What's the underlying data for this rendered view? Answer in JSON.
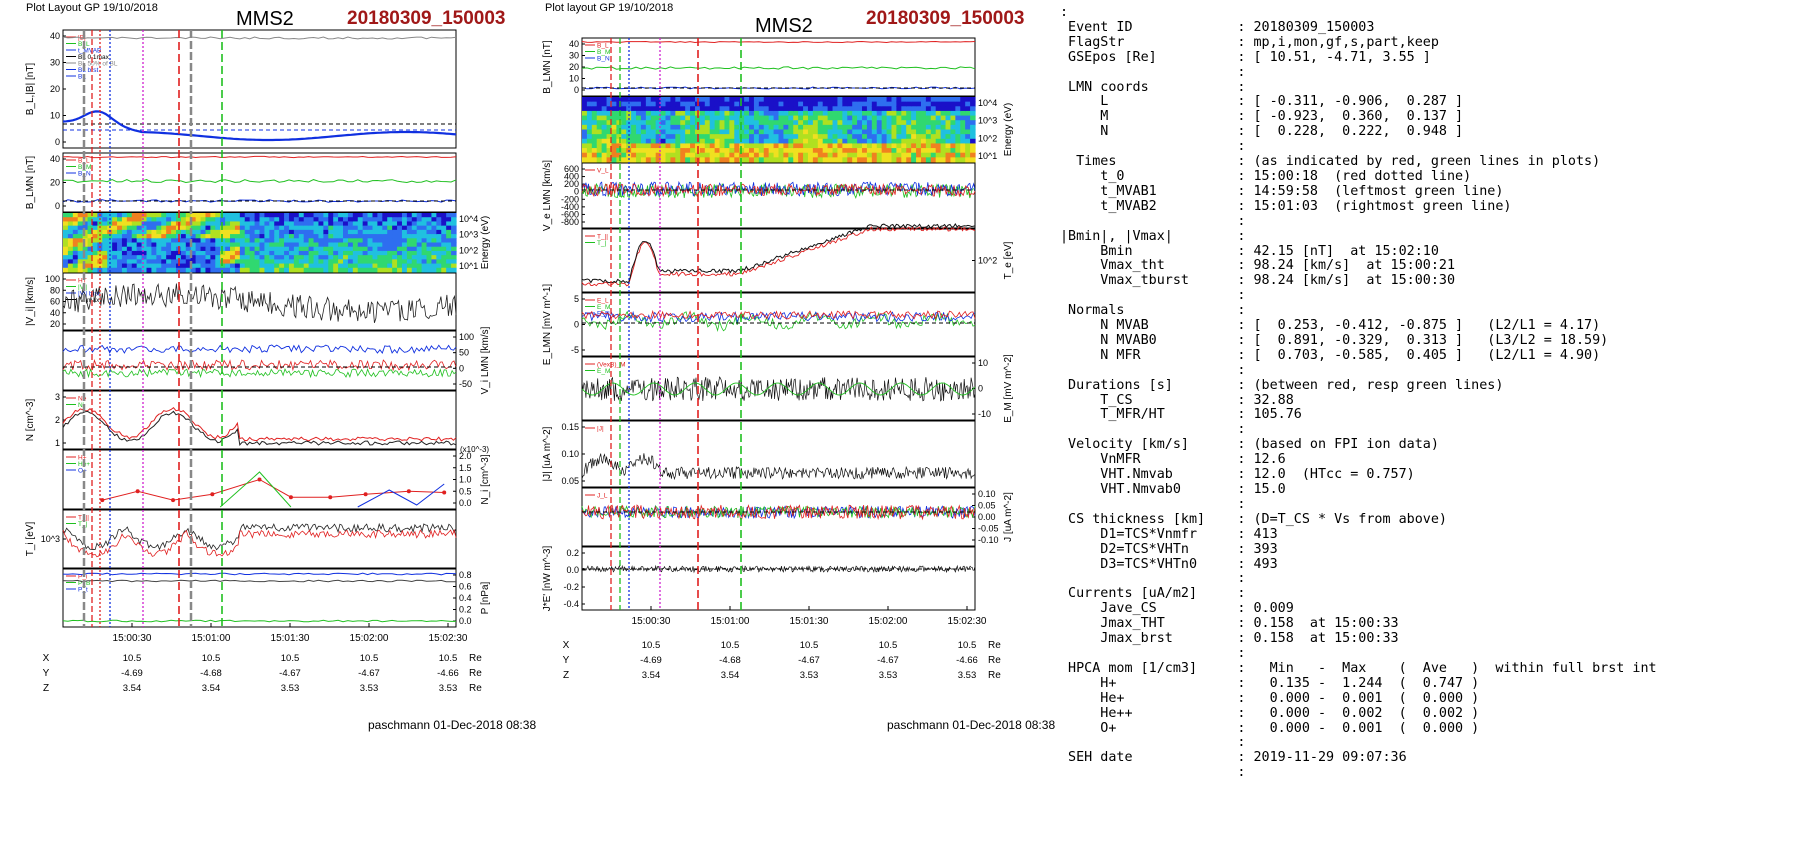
{
  "left": {
    "layout_label": "Plot Layout GP 19/10/2018",
    "spacecraft": "MMS2",
    "event_code": "20180309_150003",
    "footer": "paschmann 01-Dec-2018 08:38",
    "time_ticks": [
      "15:00:30",
      "15:01:00",
      "15:01:30",
      "15:02:00",
      "15:02:30"
    ],
    "orbit_rows": [
      {
        "label": "X",
        "values": [
          "10.5",
          "10.5",
          "10.5",
          "10.5",
          "10.5"
        ],
        "unit": "Re"
      },
      {
        "label": "Y",
        "values": [
          "-4.69",
          "-4.68",
          "-4.67",
          "-4.67",
          "-4.66"
        ],
        "unit": "Re"
      },
      {
        "label": "Z",
        "values": [
          "3.54",
          "3.54",
          "3.53",
          "3.53",
          "3.53"
        ],
        "unit": "Re"
      }
    ],
    "panels": [
      {
        "ylabel": "B_L,|B| [nT]",
        "ticks": [
          "40",
          "30",
          "20",
          "10",
          "0"
        ],
        "legend": [
          "|B|",
          "B_L",
          "t_MVAB",
          "BL 0.1max",
          "BL 50% of BL",
          "BL brst",
          "BL"
        ]
      },
      {
        "ylabel": "B_LMN [nT]",
        "ticks": [
          "40",
          "20",
          "0"
        ],
        "legend": [
          "B_L",
          "B_M",
          "B_N"
        ]
      },
      {
        "ylabel": "Energy (eV)",
        "ticks": [
          "10^4",
          "10^3",
          "10^2",
          "10^1"
        ]
      },
      {
        "ylabel": "|V_i| [km/s]",
        "ticks": [
          "100",
          "80",
          "60",
          "40",
          "20"
        ],
        "legend": [
          "HT",
          "|Vi|",
          "|Vi| brst",
          "|Vi|max"
        ]
      },
      {
        "ylabel": "V_i LMN [km/s]",
        "ticks": [
          "100",
          "50",
          "0",
          "-50"
        ]
      },
      {
        "ylabel": "N [cm^-3]",
        "ticks": [
          "3",
          "2",
          "1"
        ],
        "legend": [
          "Ne",
          "Ni"
        ]
      },
      {
        "ylabel": "N_i [cm^-3]",
        "scale_note": "(x10^-3)",
        "ticks": [
          "2.0",
          "1.5",
          "1.0",
          "0.5",
          "0.0"
        ],
        "legend": [
          "H+",
          "He+",
          "O+"
        ]
      },
      {
        "ylabel": "T_i [eV]",
        "ticks": [
          "10^3"
        ],
        "legend": [
          "T_||",
          "T_|"
        ]
      },
      {
        "ylabel": "P [nPa]",
        "ticks": [
          "0.8",
          "0.6",
          "0.4",
          "0.2",
          "0.0"
        ],
        "legend": [
          "P_i",
          "P_B",
          "P_t"
        ]
      }
    ]
  },
  "middle": {
    "layout_label": "Plot layout GP 19/10/2018",
    "spacecraft": "MMS2",
    "event_code": "20180309_150003",
    "footer": "paschmann 01-Dec-2018 08:38",
    "time_ticks": [
      "15:00:30",
      "15:01:00",
      "15:01:30",
      "15:02:00",
      "15:02:30"
    ],
    "orbit_rows": [
      {
        "label": "X",
        "values": [
          "10.5",
          "10.5",
          "10.5",
          "10.5",
          "10.5"
        ],
        "unit": "Re"
      },
      {
        "label": "Y",
        "values": [
          "-4.69",
          "-4.68",
          "-4.67",
          "-4.67",
          "-4.66"
        ],
        "unit": "Re"
      },
      {
        "label": "Z",
        "values": [
          "3.54",
          "3.54",
          "3.53",
          "3.53",
          "3.53"
        ],
        "unit": "Re"
      }
    ],
    "panels": [
      {
        "ylabel": "B_LMN [nT]",
        "ticks": [
          "40",
          "30",
          "20",
          "10",
          "0"
        ],
        "legend": [
          "B_L",
          "B_M",
          "B_N"
        ]
      },
      {
        "ylabel": "Energy (eV)",
        "ticks": [
          "10^4",
          "10^3",
          "10^2",
          "10^1"
        ]
      },
      {
        "ylabel": "V_e LMN [km/s]",
        "ticks": [
          "600",
          "400",
          "200",
          "0",
          "-200",
          "-400",
          "-600",
          "-800"
        ],
        "legend": [
          "V_L"
        ]
      },
      {
        "ylabel": "T_e [eV]",
        "ticks": [
          "10^2"
        ],
        "legend": [
          "T_||",
          "T_|"
        ]
      },
      {
        "ylabel": "E_LMN [mV m^-1]",
        "ticks": [
          "5",
          "0",
          "-5"
        ],
        "legend": [
          "E_L",
          "E_M",
          "E_N"
        ]
      },
      {
        "ylabel": "E_M [mV m^-2]",
        "ticks": [
          "10",
          "0",
          "-10"
        ],
        "legend": [
          "(VexB)_M",
          "E_M"
        ]
      },
      {
        "ylabel": "|J| [uA m^-2]",
        "ticks": [
          "0.15",
          "0.10",
          "0.05"
        ],
        "legend": [
          "|J|"
        ]
      },
      {
        "ylabel": "J [uA m^-2]",
        "ticks": [
          "0.10",
          "0.05",
          "0.00",
          "-0.05",
          "-0.10"
        ],
        "legend": [
          "J_L"
        ]
      },
      {
        "ylabel": "J*E' [nW m^-3]",
        "ticks": [
          "0.2",
          "0.0",
          "-0.2",
          "-0.4"
        ]
      }
    ]
  },
  "info_lines": [
    ":",
    " Event ID             : 20180309_150003",
    " FlagStr              : mp,i,mon,gf,s,part,keep",
    " GSEpos [Re]          : [ 10.51, -4.71, 3.55 ]",
    "                      :",
    " LMN coords           :",
    "     L                : [ -0.311, -0.906,  0.287 ]",
    "     M                : [ -0.923,  0.360,  0.137 ]",
    "     N                : [  0.228,  0.222,  0.948 ]",
    "                      :",
    "  Times               : (as indicated by red, green lines in plots)",
    "     t_0              : 15:00:18  (red dotted line)",
    "     t_MVAB1          : 14:59:58  (leftmost green line)",
    "     t_MVAB2          : 15:01:03  (rightmost green line)",
    "                      :",
    "|Bmin|, |Vmax|        :",
    "     Bmin             : 42.15 [nT]  at 15:02:10",
    "     Vmax_tht         : 98.24 [km/s]  at 15:00:21",
    "     Vmax_tburst      : 98.24 [km/s]  at 15:00:30",
    "                      :",
    " Normals              :",
    "     N MVAB           : [  0.253, -0.412, -0.875 ]   (L2/L1 = 4.17)",
    "     N MVAB0          : [  0.891, -0.329,  0.313 ]   (L3/L2 = 18.59)",
    "     N MFR            : [  0.703, -0.585,  0.405 ]   (L2/L1 = 4.90)",
    "                      :",
    " Durations [s]        : (between red, resp green lines)",
    "     T_CS             : 32.88",
    "     T_MFR/HT         : 105.76",
    "                      :",
    " Velocity [km/s]      : (based on FPI ion data)",
    "     VnMFR            : 12.6",
    "     VHT.Nmvab        : 12.0  (HTcc = 0.757)",
    "     VHT.Nmvab0       : 15.0",
    "                      :",
    " CS thickness [km]    : (D=T_CS * Vs from above)",
    "     D1=TCS*Vnmfr     : 413",
    "     D2=TCS*VHTn      : 393",
    "     D3=TCS*VHTn0     : 493",
    "                      :",
    " Currents [uA/m2]     :",
    "     Jave_CS          : 0.009",
    "     Jmax_THT         : 0.158  at 15:00:33",
    "     Jmax_brst        : 0.158  at 15:00:33",
    "                      :",
    " HPCA mom [1/cm3]     :   Min   -  Max    (  Ave   )  within full brst int",
    "     H+               :   0.135 -  1.244  (  0.747 )",
    "     He+              :   0.000 -  0.001  (  0.000 )",
    "     He++             :   0.000 -  0.002  (  0.002 )",
    "     O+               :   0.000 -  0.001  (  0.000 )",
    "                      :",
    " SEH date             : 2019-11-29 09:07:36",
    "                      :"
  ],
  "colors": {
    "event_code": "#a01818",
    "red": "#e02020",
    "green": "#20c020",
    "blue": "#1030e0",
    "black": "#000000",
    "magenta": "#d020d0",
    "grey": "#888888"
  }
}
